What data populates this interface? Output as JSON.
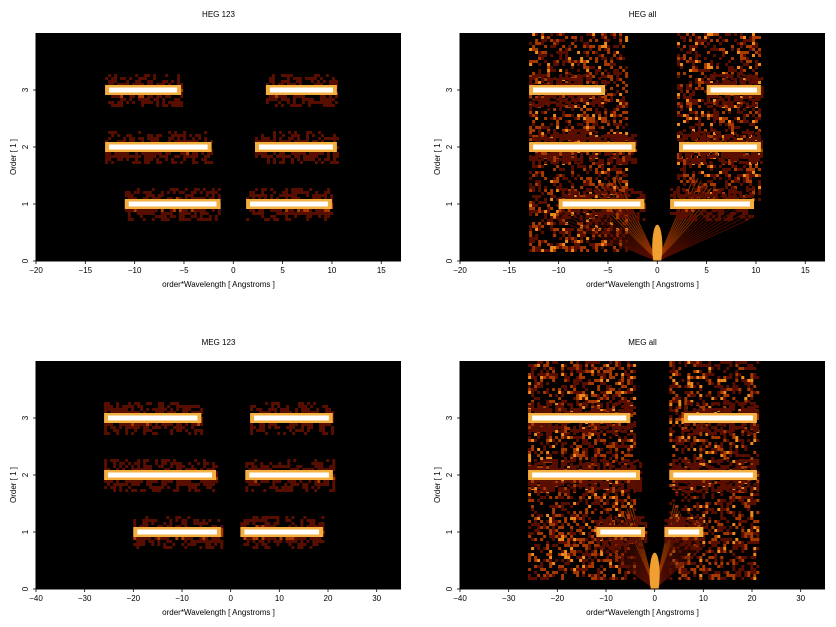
{
  "chart_data": [
    {
      "type": "heatmap",
      "title": "HEG 123",
      "xlabel": "order*Wavelength [ Angstroms ]",
      "ylabel": "Order [ 1 ]",
      "xlim": [
        -20,
        17
      ],
      "ylim": [
        0,
        4
      ],
      "xticks": [
        -20,
        -15,
        -10,
        -5,
        0,
        5,
        10,
        15
      ],
      "yticks": [
        0,
        1,
        2,
        3
      ],
      "colormap": [
        "#000000",
        "#5a0e00",
        "#a83a00",
        "#f08a1a",
        "#ffd27a",
        "#ffffff"
      ],
      "bands": [
        {
          "order": 3,
          "x_min": -13,
          "x_max": -5.3,
          "weight": 0.85
        },
        {
          "order": 3,
          "x_min": 3.3,
          "x_max": 10.5,
          "weight": 0.85
        },
        {
          "order": 2,
          "x_min": -13,
          "x_max": -2.2,
          "weight": 0.85
        },
        {
          "order": 2,
          "x_min": 2.2,
          "x_max": 10.5,
          "weight": 0.85
        },
        {
          "order": 1,
          "x_min": -11,
          "x_max": -1.3,
          "weight": 1.0
        },
        {
          "order": 1,
          "x_min": 1.3,
          "x_max": 10.0,
          "weight": 1.0
        }
      ],
      "wedges": []
    },
    {
      "type": "heatmap",
      "title": "HEG all",
      "xlabel": "order*Wavelength [ Angstroms ]",
      "ylabel": "Order [ 1 ]",
      "xlim": [
        -20,
        17
      ],
      "ylim": [
        0,
        4
      ],
      "xticks": [
        -20,
        -15,
        -10,
        -5,
        0,
        5,
        10,
        15
      ],
      "yticks": [
        0,
        1,
        2,
        3
      ],
      "colormap": [
        "#000000",
        "#5a0e00",
        "#a83a00",
        "#f08a1a",
        "#ffd27a",
        "#ffffff"
      ],
      "bands": [
        {
          "order": 3,
          "x_min": -13,
          "x_max": -5.3,
          "weight": 0.9
        },
        {
          "order": 3,
          "x_min": 5.0,
          "x_max": 10.5,
          "weight": 0.9
        },
        {
          "order": 2,
          "x_min": -13,
          "x_max": -2.2,
          "weight": 0.9
        },
        {
          "order": 2,
          "x_min": 2.2,
          "x_max": 10.5,
          "weight": 0.9
        },
        {
          "order": 1,
          "x_min": -10,
          "x_max": -1.3,
          "weight": 1.0
        },
        {
          "order": 1,
          "x_min": 1.3,
          "x_max": 9.8,
          "weight": 1.0
        }
      ],
      "wedges": [
        {
          "x_min": -13,
          "x_max": -3,
          "y_min": 0.2,
          "y_max": 4.0,
          "weight": 0.5
        },
        {
          "x_min": 2,
          "x_max": 10.5,
          "y_min": 1.0,
          "y_max": 4.0,
          "weight": 0.45
        }
      ],
      "fans": [
        {
          "x0": 0,
          "y0": 0,
          "x1": -10.5,
          "y1": 1.5,
          "weight": 0.4
        },
        {
          "x0": 0,
          "y0": 0,
          "x1": 9.5,
          "y1": 1.5,
          "weight": 0.4
        }
      ]
    },
    {
      "type": "heatmap",
      "title": "MEG 123",
      "xlabel": "order*Wavelength [ Angstroms ]",
      "ylabel": "Order [ 1 ]",
      "xlim": [
        -40,
        35
      ],
      "ylim": [
        0,
        4
      ],
      "xticks": [
        -40,
        -30,
        -20,
        -10,
        0,
        10,
        20,
        30
      ],
      "yticks": [
        0,
        1,
        2,
        3
      ],
      "colormap": [
        "#000000",
        "#5a0e00",
        "#a83a00",
        "#f08a1a",
        "#ffd27a",
        "#ffffff"
      ],
      "bands": [
        {
          "order": 3,
          "x_min": -26,
          "x_max": -6,
          "weight": 0.9
        },
        {
          "order": 3,
          "x_min": 4,
          "x_max": 21,
          "weight": 0.9
        },
        {
          "order": 2,
          "x_min": -26,
          "x_max": -3,
          "weight": 0.85
        },
        {
          "order": 2,
          "x_min": 3,
          "x_max": 21,
          "weight": 0.85
        },
        {
          "order": 1,
          "x_min": -20,
          "x_max": -2,
          "weight": 1.0
        },
        {
          "order": 1,
          "x_min": 2,
          "x_max": 19,
          "weight": 1.0
        }
      ],
      "wedges": []
    },
    {
      "type": "heatmap",
      "title": "MEG all",
      "xlabel": "order*Wavelength [ Angstroms ]",
      "ylabel": "Order [ 1 ]",
      "xlim": [
        -40,
        35
      ],
      "ylim": [
        0,
        4
      ],
      "xticks": [
        -40,
        -30,
        -20,
        -10,
        0,
        10,
        20,
        30
      ],
      "yticks": [
        0,
        1,
        2,
        3
      ],
      "colormap": [
        "#000000",
        "#5a0e00",
        "#a83a00",
        "#f08a1a",
        "#ffd27a",
        "#ffffff"
      ],
      "bands": [
        {
          "order": 3,
          "x_min": -26,
          "x_max": -5,
          "weight": 0.9
        },
        {
          "order": 3,
          "x_min": 6,
          "x_max": 21,
          "weight": 0.9
        },
        {
          "order": 2,
          "x_min": -26,
          "x_max": -3,
          "weight": 0.9
        },
        {
          "order": 2,
          "x_min": 3,
          "x_max": 21,
          "weight": 0.9
        },
        {
          "order": 1,
          "x_min": -12,
          "x_max": -2,
          "weight": 1.0
        },
        {
          "order": 1,
          "x_min": 2,
          "x_max": 10,
          "weight": 1.0
        }
      ],
      "wedges": [
        {
          "x_min": -26,
          "x_max": -4,
          "y_min": 0.2,
          "y_max": 4.0,
          "weight": 0.5
        },
        {
          "x_min": 3,
          "x_max": 21,
          "y_min": 0.2,
          "y_max": 4.0,
          "weight": 0.45
        }
      ],
      "fans": [
        {
          "x0": 0,
          "y0": 0,
          "x1": -12,
          "y1": 1.5,
          "weight": 0.35
        },
        {
          "x0": 0,
          "y0": 0,
          "x1": 10,
          "y1": 1.5,
          "weight": 0.35
        }
      ]
    }
  ]
}
